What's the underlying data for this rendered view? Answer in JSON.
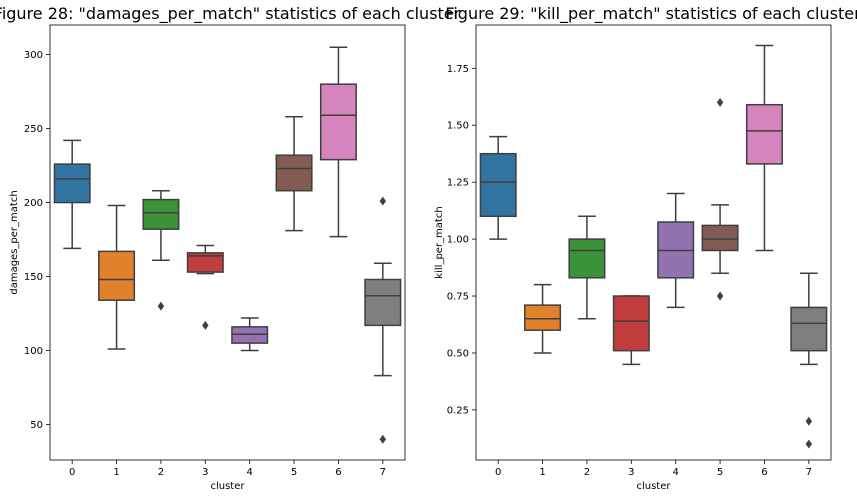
{
  "chart_data": [
    {
      "type": "box",
      "title": "Figure 28: \"damages_per_match\" statistics of each cluster",
      "xlabel": "cluster",
      "ylabel": "damages_per_match",
      "ylim": [
        26,
        320
      ],
      "yticks": [
        50,
        100,
        150,
        200,
        250,
        300
      ],
      "grid": false,
      "categories": [
        "0",
        "1",
        "2",
        "3",
        "4",
        "5",
        "6",
        "7"
      ],
      "colors": [
        "#3274a1",
        "#e1812c",
        "#3a923a",
        "#c03d3e",
        "#9372b2",
        "#845b53",
        "#d684bd",
        "#7f7f7f"
      ],
      "boxes": [
        {
          "whislo": 169,
          "q1": 200,
          "med": 216,
          "q3": 226,
          "whishi": 242,
          "fliers": []
        },
        {
          "whislo": 101,
          "q1": 134,
          "med": 148,
          "q3": 167,
          "whishi": 198,
          "fliers": []
        },
        {
          "whislo": 161,
          "q1": 182,
          "med": 193,
          "q3": 202,
          "whishi": 208,
          "fliers": [
            130
          ]
        },
        {
          "whislo": 152,
          "q1": 153,
          "med": 164,
          "q3": 166,
          "whishi": 171,
          "fliers": [
            117
          ]
        },
        {
          "whislo": 100,
          "q1": 105,
          "med": 111,
          "q3": 116,
          "whishi": 122,
          "fliers": []
        },
        {
          "whislo": 181,
          "q1": 208,
          "med": 223,
          "q3": 232,
          "whishi": 258,
          "fliers": []
        },
        {
          "whislo": 177,
          "q1": 229,
          "med": 259,
          "q3": 280,
          "whishi": 305,
          "fliers": []
        },
        {
          "whislo": 83,
          "q1": 117,
          "med": 137,
          "q3": 148,
          "whishi": 159,
          "fliers": [
            201,
            40
          ]
        }
      ]
    },
    {
      "type": "box",
      "title": "Figure 29: \"kill_per_match\" statistics of each cluster",
      "xlabel": "cluster",
      "ylabel": "kill_per_match",
      "ylim": [
        0.03,
        1.94
      ],
      "yticks": [
        0.25,
        0.5,
        0.75,
        1.0,
        1.25,
        1.5,
        1.75
      ],
      "grid": false,
      "categories": [
        "0",
        "1",
        "2",
        "3",
        "4",
        "5",
        "6",
        "7"
      ],
      "colors": [
        "#3274a1",
        "#e1812c",
        "#3a923a",
        "#c03d3e",
        "#9372b2",
        "#845b53",
        "#d684bd",
        "#7f7f7f"
      ],
      "boxes": [
        {
          "whislo": 1.0,
          "q1": 1.1,
          "med": 1.25,
          "q3": 1.375,
          "whishi": 1.45,
          "fliers": []
        },
        {
          "whislo": 0.5,
          "q1": 0.6,
          "med": 0.65,
          "q3": 0.71,
          "whishi": 0.8,
          "fliers": []
        },
        {
          "whislo": 0.65,
          "q1": 0.83,
          "med": 0.95,
          "q3": 1.0,
          "whishi": 1.1,
          "fliers": []
        },
        {
          "whislo": 0.45,
          "q1": 0.51,
          "med": 0.64,
          "q3": 0.75,
          "whishi": 0.75,
          "fliers": []
        },
        {
          "whislo": 0.7,
          "q1": 0.83,
          "med": 0.95,
          "q3": 1.075,
          "whishi": 1.2,
          "fliers": []
        },
        {
          "whislo": 0.85,
          "q1": 0.95,
          "med": 1.0,
          "q3": 1.06,
          "whishi": 1.15,
          "fliers": [
            1.6,
            0.75
          ]
        },
        {
          "whislo": 0.95,
          "q1": 1.33,
          "med": 1.475,
          "q3": 1.59,
          "whishi": 1.85,
          "fliers": []
        },
        {
          "whislo": 0.45,
          "q1": 0.51,
          "med": 0.63,
          "q3": 0.7,
          "whishi": 0.85,
          "fliers": [
            0.2,
            0.1
          ]
        }
      ]
    }
  ]
}
